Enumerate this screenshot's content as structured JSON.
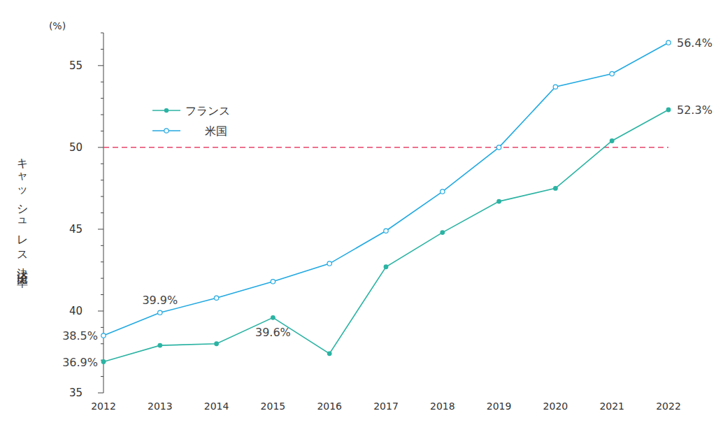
{
  "chart_data": {
    "type": "line",
    "y_label": "キャッシュレス決済比率",
    "y_unit_label": "(%)",
    "categories": [
      "2012",
      "2013",
      "2014",
      "2015",
      "2016",
      "2017",
      "2018",
      "2019",
      "2020",
      "2021",
      "2022"
    ],
    "series": [
      {
        "name": "フランス",
        "color": "#2bb3a3",
        "marker": "filled",
        "values": [
          36.9,
          37.9,
          38.0,
          39.6,
          37.4,
          42.7,
          44.8,
          46.7,
          47.5,
          50.4,
          52.3
        ],
        "value_labels": [
          "36.9%",
          null,
          null,
          "39.6%",
          null,
          null,
          null,
          null,
          null,
          null,
          "52.3%"
        ]
      },
      {
        "name": "米国",
        "color": "#22a9e1",
        "marker": "hollow",
        "values": [
          38.5,
          39.9,
          40.8,
          41.8,
          42.9,
          44.9,
          47.3,
          50.0,
          53.7,
          54.5,
          56.4
        ],
        "value_labels": [
          "38.5%",
          "39.9%",
          null,
          null,
          null,
          null,
          null,
          null,
          null,
          null,
          "56.4%"
        ]
      }
    ],
    "ylim": [
      35,
      57
    ],
    "yticks": [
      35,
      40,
      45,
      50,
      55
    ],
    "minor_yticks": [
      36,
      37,
      38,
      39,
      41,
      42,
      43,
      44,
      46,
      47,
      48,
      49,
      51,
      52,
      53,
      54,
      56,
      57
    ],
    "reference_lines": [
      {
        "y": 50,
        "color": "#e8456b",
        "line_style": "dashed"
      }
    ],
    "legend": "upper-left",
    "grid": false
  }
}
